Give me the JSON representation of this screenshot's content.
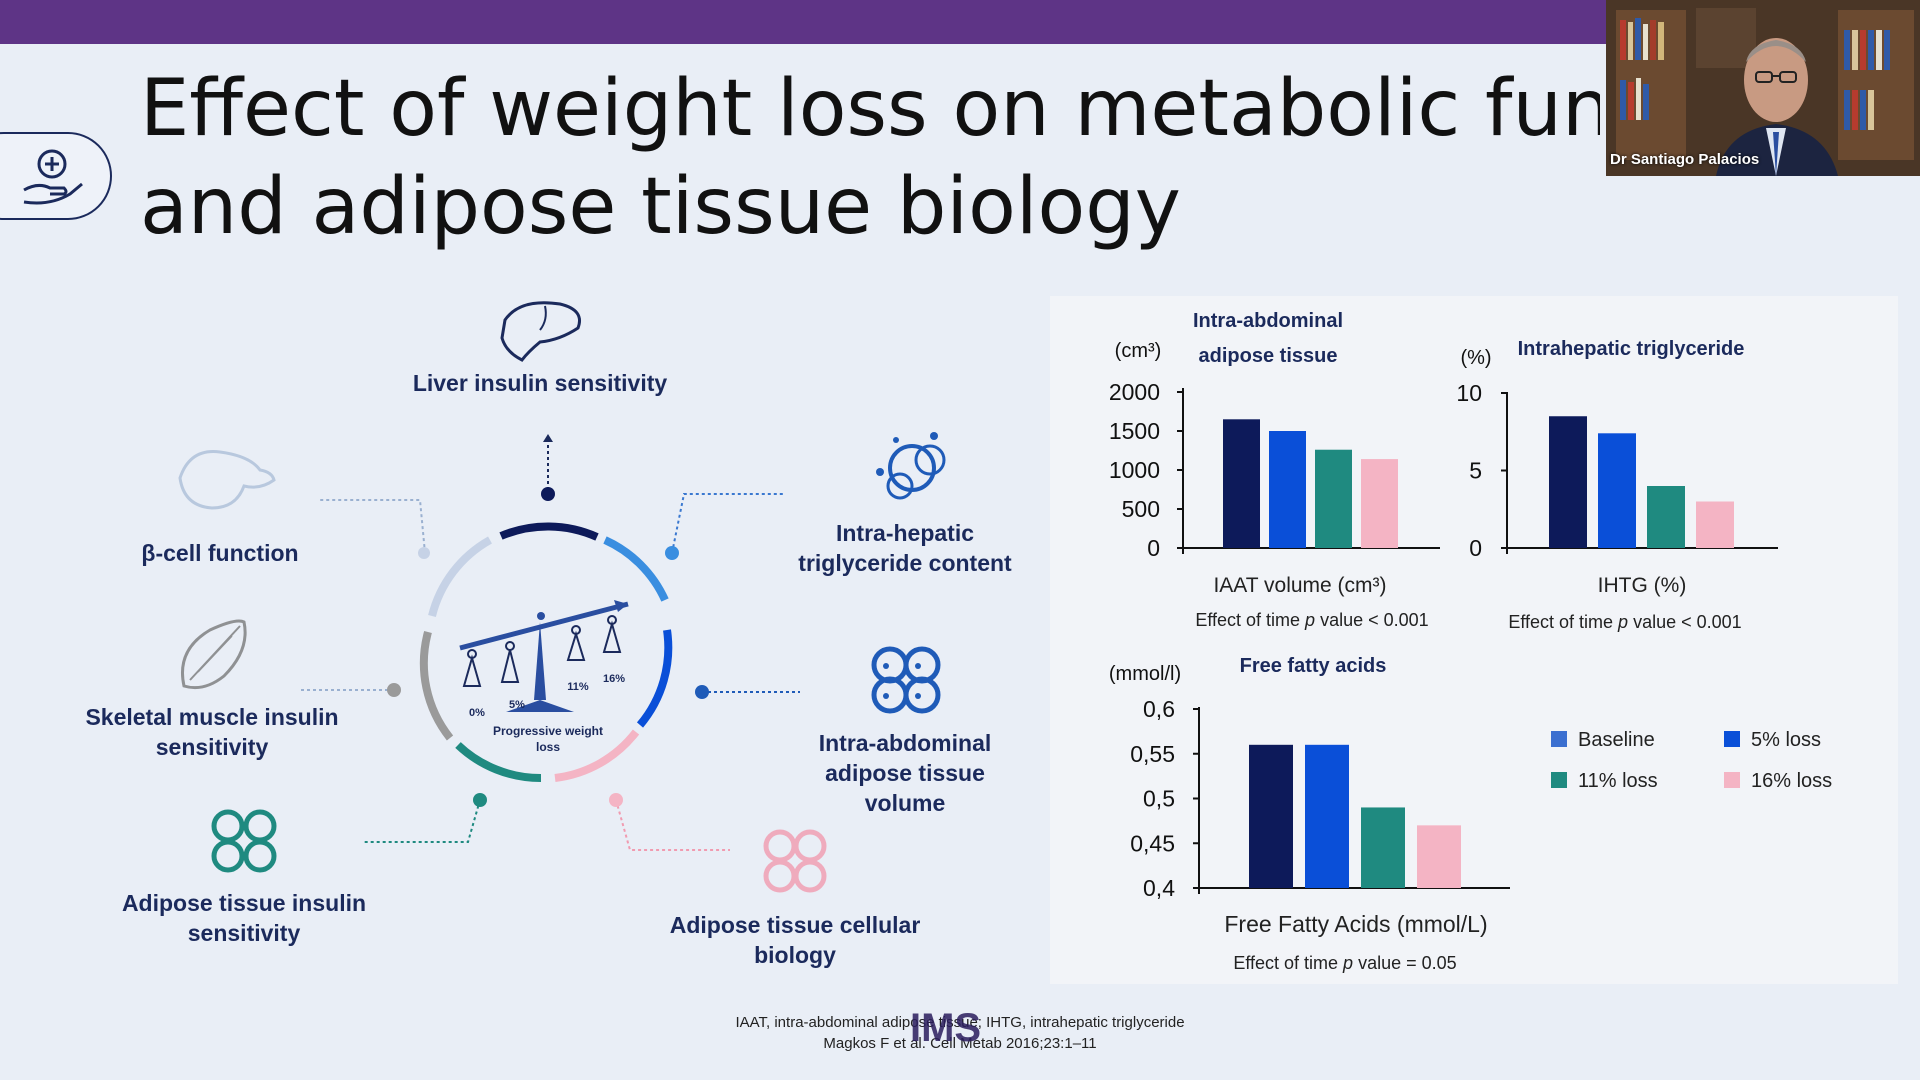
{
  "slide": {
    "title_line1": "Effect of weight loss on metabolic function",
    "title_line2": "and adipose tissue biology",
    "bar_color": "#5e3486"
  },
  "video": {
    "presenter_name": "Dr Santiago Palacios"
  },
  "diagram": {
    "center_label_line1": "Progressive weight",
    "center_label_line2": "loss",
    "scale_labels": [
      "0%",
      "5%",
      "11%",
      "16%"
    ],
    "outcomes": {
      "liver": "Liver insulin sensitivity",
      "beta": "β-cell function",
      "hepatic_line1": "Intra-hepatic",
      "hepatic_line2": "triglyceride content",
      "skeletal_line1": "Skeletal muscle insulin",
      "skeletal_line2": "sensitivity",
      "iaat_line1": "Intra-abdominal",
      "iaat_line2": "adipose tissue",
      "iaat_line3": "volume",
      "adipose_ins_line1": "Adipose tissue insulin",
      "adipose_ins_line2": "sensitivity",
      "adipose_cell_line1": "Adipose tissue cellular",
      "adipose_cell_line2": "biology"
    },
    "icons": [
      "liver-icon",
      "pancreas-icon",
      "fat-droplet-icon",
      "muscle-icon",
      "cells-icon",
      "adipocyte-icon",
      "scale-icon"
    ]
  },
  "chart_data": [
    {
      "type": "bar",
      "title_line1": "Intra-abdominal",
      "title_line2": "adipose tissue",
      "unit_label": "(cm³)",
      "xlabel": "IAAT volume (cm³)",
      "note_prefix": "Effect of time ",
      "note_p": "p",
      "note_suffix": " value < 0.001",
      "ylim": [
        0,
        2000
      ],
      "yticks": [
        "2000",
        "1500",
        "1000",
        "500",
        "0"
      ],
      "series": [
        {
          "name": "Baseline",
          "values": [
            1650
          ]
        },
        {
          "name": "5% loss",
          "values": [
            1500
          ]
        },
        {
          "name": "11% loss",
          "values": [
            1260
          ]
        },
        {
          "name": "16% loss",
          "values": [
            1140
          ]
        }
      ]
    },
    {
      "type": "bar",
      "title": "Intrahepatic triglyceride",
      "unit_label": "(%)",
      "xlabel": "IHTG (%)",
      "note_prefix": "Effect of time ",
      "note_p": "p",
      "note_suffix": " value < 0.001",
      "ylim": [
        0,
        10
      ],
      "yticks": [
        "10",
        "5",
        "0"
      ],
      "series": [
        {
          "name": "Baseline",
          "values": [
            8.5
          ]
        },
        {
          "name": "5% loss",
          "values": [
            7.4
          ]
        },
        {
          "name": "11% loss",
          "values": [
            4.0
          ]
        },
        {
          "name": "16% loss",
          "values": [
            3.0
          ]
        }
      ]
    },
    {
      "type": "bar",
      "title": "Free fatty acids",
      "unit_label": "(mmol/l)",
      "xlabel": "Free Fatty Acids (mmol/L)",
      "note_prefix": "Effect of time  ",
      "note_p": "p",
      "note_suffix": " value = 0.05",
      "ylim": [
        0.4,
        0.6
      ],
      "yticks": [
        "0,6",
        "0,55",
        "0,5",
        "0,45",
        "0,4"
      ],
      "series": [
        {
          "name": "Baseline",
          "values": [
            0.56
          ]
        },
        {
          "name": "5% loss",
          "values": [
            0.56
          ]
        },
        {
          "name": "11% loss",
          "values": [
            0.49
          ]
        },
        {
          "name": "16% loss",
          "values": [
            0.47
          ]
        }
      ]
    }
  ],
  "legend": {
    "items": [
      "Baseline",
      "5% loss",
      "11% loss",
      "16% loss"
    ],
    "colors": [
      "#0d1a5a",
      "#0a4fd8",
      "#1f8a80",
      "#f4b4c4"
    ]
  },
  "footnote": {
    "line1": "IAAT, intra-abdominal adipose tissue; IHTG, intrahepatic triglyceride",
    "line2": "Magkos F et al. Cell Metab 2016;23:1–11",
    "logo": "IMS"
  }
}
